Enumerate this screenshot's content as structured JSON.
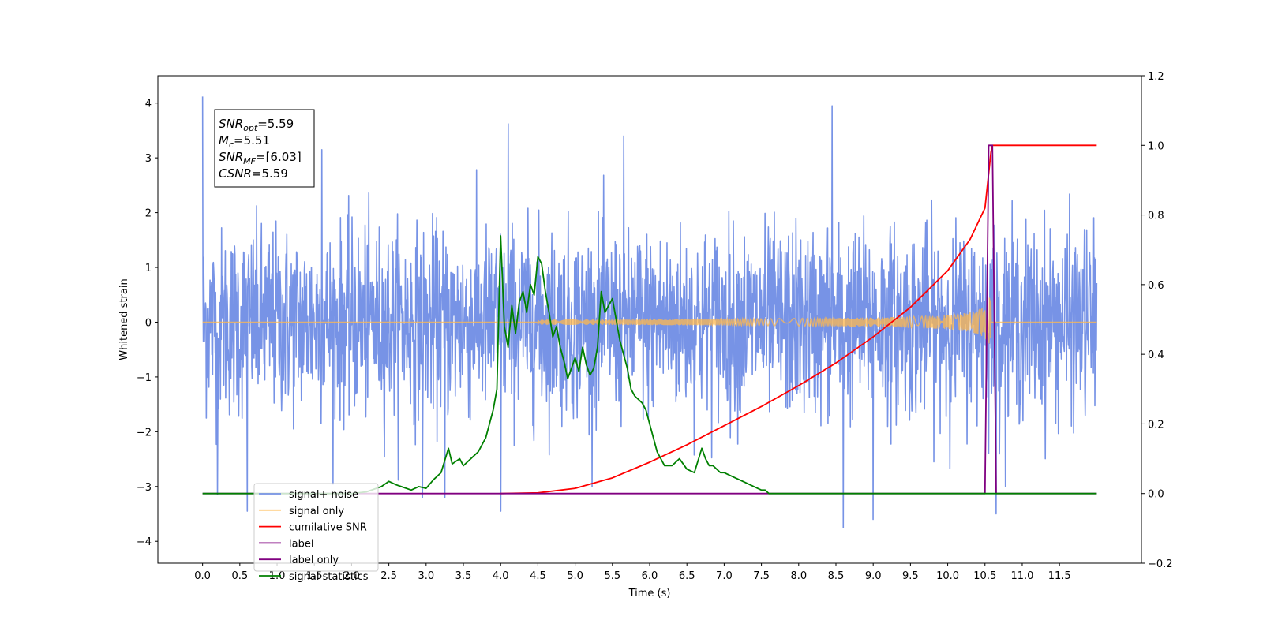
{
  "chart_data": {
    "type": "line",
    "xlabel": "Time (s)",
    "ylabel": "Whitened strain",
    "xlim": [
      -0.6,
      12.6
    ],
    "ylim": [
      -4.4,
      4.5
    ],
    "y2lim": [
      -0.2,
      1.2
    ],
    "x_ticks": [
      0.0,
      0.5,
      1.0,
      1.5,
      2.0,
      2.5,
      3.0,
      3.5,
      4.0,
      4.5,
      5.0,
      5.5,
      6.0,
      6.5,
      7.0,
      7.5,
      8.0,
      8.5,
      9.0,
      9.5,
      10.0,
      10.5,
      11.0,
      11.5
    ],
    "x_tick_labels": [
      "0.0",
      "0.5",
      "1.0",
      "1.5",
      "2.0",
      "2.5",
      "3.0",
      "3.5",
      "4.0",
      "4.5",
      "5.0",
      "5.5",
      "6.0",
      "6.5",
      "7.0",
      "7.5",
      "8.0",
      "8.5",
      "9.0",
      "9.5",
      "10.0",
      "10.5",
      "11.0",
      "11.5"
    ],
    "y_ticks": [
      4,
      3,
      2,
      1,
      0,
      -1,
      -2,
      -3,
      -4
    ],
    "y_tick_labels": [
      "4",
      "3",
      "2",
      "1",
      "0",
      "−1",
      "−2",
      "−3",
      "−4"
    ],
    "y2_ticks": [
      1.2,
      1.0,
      0.8,
      0.6,
      0.4,
      0.2,
      0.0,
      -0.2
    ],
    "y2_tick_labels": [
      "1.2",
      "1.0",
      "0.8",
      "0.6",
      "0.4",
      "0.2",
      "0.0",
      "−0.2"
    ],
    "grid": false,
    "legend_position": "lower-left",
    "annotation": {
      "lines": [
        {
          "base": "SNR",
          "sub": "opt",
          "value": "=5.59"
        },
        {
          "base": "M",
          "sub": "c",
          "value": "=5.51"
        },
        {
          "base": "SNR",
          "sub": "MF",
          "value": "=[6.03]"
        },
        {
          "base": "CSNR",
          "sub": "",
          "value": "=5.59"
        }
      ]
    },
    "series": [
      {
        "name": "signal+ noise",
        "color": "#7793e6",
        "axis": "left",
        "noise_std": 0.85,
        "x_range": [
          0.0,
          12.0
        ],
        "spikes": [
          [
            0.0,
            4.12
          ],
          [
            0.6,
            -3.45
          ],
          [
            0.2,
            -3.15
          ],
          [
            4.0,
            -3.45
          ],
          [
            4.1,
            3.62
          ],
          [
            5.65,
            3.4
          ],
          [
            8.45,
            3.95
          ],
          [
            8.6,
            -3.75
          ],
          [
            9.0,
            -3.6
          ],
          [
            10.65,
            -3.5
          ],
          [
            3.25,
            -3.2
          ],
          [
            2.95,
            -3.2
          ],
          [
            1.6,
            3.15
          ]
        ]
      },
      {
        "name": "signal only",
        "color": "#ffb84d",
        "axis": "left",
        "chirp_start": 4.5,
        "chirp_end": 10.58,
        "amp_at_end": 0.45
      },
      {
        "name": "cumilative SNR",
        "color": "#ff0000",
        "axis": "right",
        "x": [
          4.0,
          4.5,
          5.0,
          5.5,
          6.0,
          6.5,
          7.0,
          7.5,
          8.0,
          8.5,
          9.0,
          9.5,
          10.0,
          10.3,
          10.5,
          10.58,
          10.6,
          11.0,
          11.5,
          12.0
        ],
        "values": [
          0.0,
          0.002,
          0.015,
          0.045,
          0.09,
          0.14,
          0.195,
          0.25,
          0.31,
          0.375,
          0.45,
          0.535,
          0.64,
          0.73,
          0.82,
          0.98,
          1.0,
          1.0,
          1.0,
          1.0
        ]
      },
      {
        "name": "label",
        "color": "#800080",
        "axis": "right",
        "x": [
          0.0,
          10.5,
          10.55,
          10.6,
          10.65,
          12.0
        ],
        "values": [
          0.0,
          0.0,
          1.0,
          1.0,
          0.0,
          0.0
        ]
      },
      {
        "name": "label only",
        "color": "#800080",
        "axis": "right",
        "hidden_in_plot": true
      },
      {
        "name": "signal statistics",
        "color": "#008000",
        "axis": "right",
        "x": [
          0.0,
          2.0,
          2.2,
          2.4,
          2.5,
          2.6,
          2.8,
          2.9,
          3.0,
          3.1,
          3.2,
          3.3,
          3.35,
          3.45,
          3.5,
          3.6,
          3.7,
          3.8,
          3.9,
          3.95,
          4.0,
          4.05,
          4.1,
          4.15,
          4.2,
          4.25,
          4.3,
          4.35,
          4.4,
          4.45,
          4.5,
          4.55,
          4.6,
          4.65,
          4.7,
          4.75,
          4.8,
          4.85,
          4.9,
          4.95,
          5.0,
          5.05,
          5.1,
          5.15,
          5.2,
          5.25,
          5.3,
          5.35,
          5.4,
          5.45,
          5.5,
          5.55,
          5.6,
          5.65,
          5.7,
          5.75,
          5.8,
          5.85,
          5.9,
          5.95,
          6.0,
          6.05,
          6.1,
          6.15,
          6.2,
          6.3,
          6.4,
          6.5,
          6.6,
          6.7,
          6.75,
          6.8,
          6.85,
          6.9,
          6.95,
          7.0,
          7.1,
          7.2,
          7.3,
          7.4,
          7.5,
          7.55,
          7.6,
          7.7,
          7.8,
          8.0,
          8.2,
          8.4,
          8.6,
          12.0
        ],
        "values": [
          0.0,
          0.0,
          0.005,
          0.02,
          0.035,
          0.025,
          0.01,
          0.02,
          0.015,
          0.04,
          0.06,
          0.13,
          0.085,
          0.1,
          0.08,
          0.1,
          0.12,
          0.16,
          0.24,
          0.3,
          0.74,
          0.48,
          0.42,
          0.54,
          0.46,
          0.55,
          0.58,
          0.52,
          0.6,
          0.57,
          0.68,
          0.66,
          0.58,
          0.52,
          0.45,
          0.48,
          0.42,
          0.38,
          0.33,
          0.36,
          0.39,
          0.35,
          0.42,
          0.37,
          0.34,
          0.36,
          0.42,
          0.58,
          0.52,
          0.54,
          0.56,
          0.5,
          0.44,
          0.4,
          0.36,
          0.3,
          0.28,
          0.27,
          0.26,
          0.24,
          0.2,
          0.16,
          0.12,
          0.1,
          0.08,
          0.08,
          0.1,
          0.07,
          0.06,
          0.13,
          0.1,
          0.08,
          0.08,
          0.07,
          0.06,
          0.06,
          0.05,
          0.04,
          0.03,
          0.02,
          0.01,
          0.01,
          0.0,
          0.0,
          0.0,
          0.0,
          0.0,
          0.0,
          0.0,
          0.0
        ]
      }
    ]
  }
}
